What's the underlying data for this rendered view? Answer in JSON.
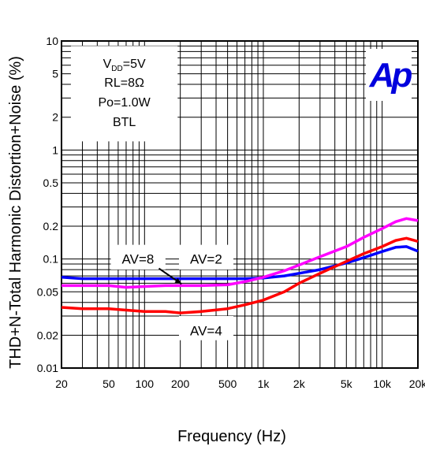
{
  "chart_data": {
    "type": "line",
    "xlabel": "Frequency (Hz)",
    "ylabel": "THD+N-Total Harmonic Distortion+Noise (%)",
    "x_scale": "log",
    "y_scale": "log",
    "xlim": [
      20,
      20000
    ],
    "ylim": [
      0.01,
      10
    ],
    "grid": true,
    "x_ticks": [
      {
        "value": 20,
        "label": "20"
      },
      {
        "value": 50,
        "label": "50"
      },
      {
        "value": 100,
        "label": "100"
      },
      {
        "value": 200,
        "label": "200"
      },
      {
        "value": 500,
        "label": "500"
      },
      {
        "value": 1000,
        "label": "1k"
      },
      {
        "value": 2000,
        "label": "2k"
      },
      {
        "value": 5000,
        "label": "5k"
      },
      {
        "value": 10000,
        "label": "10k"
      },
      {
        "value": 20000,
        "label": "20k"
      }
    ],
    "y_ticks": [
      {
        "value": 10,
        "label": "10"
      },
      {
        "value": 5,
        "label": "5"
      },
      {
        "value": 2,
        "label": "2"
      },
      {
        "value": 1,
        "label": "1"
      },
      {
        "value": 0.5,
        "label": "0.5"
      },
      {
        "value": 0.2,
        "label": "0.2"
      },
      {
        "value": 0.1,
        "label": "0.1"
      },
      {
        "value": 0.05,
        "label": "0.05"
      },
      {
        "value": 0.02,
        "label": "0.02"
      },
      {
        "value": 0.01,
        "label": "0.01"
      }
    ],
    "conditions": {
      "vdd_prefix": "V",
      "vdd_sub": "DD",
      "vdd_value": "=5V",
      "rl": "RL=8Ω",
      "po": "Po=1.0W",
      "mode": "BTL"
    },
    "logo": "Ap",
    "series": [
      {
        "name": "AV=2",
        "color": "#0000ff",
        "points": [
          [
            20,
            0.068
          ],
          [
            30,
            0.066
          ],
          [
            50,
            0.066
          ],
          [
            100,
            0.066
          ],
          [
            200,
            0.066
          ],
          [
            300,
            0.066
          ],
          [
            500,
            0.066
          ],
          [
            700,
            0.066
          ],
          [
            1000,
            0.067
          ],
          [
            1500,
            0.07
          ],
          [
            2000,
            0.074
          ],
          [
            3000,
            0.08
          ],
          [
            5000,
            0.092
          ],
          [
            7000,
            0.103
          ],
          [
            10000,
            0.117
          ],
          [
            13000,
            0.128
          ],
          [
            16000,
            0.13
          ],
          [
            20000,
            0.118
          ]
        ]
      },
      {
        "name": "AV=8",
        "color": "#ff00ff",
        "points": [
          [
            20,
            0.057
          ],
          [
            30,
            0.057
          ],
          [
            50,
            0.057
          ],
          [
            70,
            0.055
          ],
          [
            100,
            0.056
          ],
          [
            150,
            0.057
          ],
          [
            200,
            0.057
          ],
          [
            300,
            0.057
          ],
          [
            500,
            0.058
          ],
          [
            700,
            0.062
          ],
          [
            1000,
            0.068
          ],
          [
            1500,
            0.078
          ],
          [
            2000,
            0.088
          ],
          [
            3000,
            0.105
          ],
          [
            5000,
            0.13
          ],
          [
            7000,
            0.158
          ],
          [
            10000,
            0.19
          ],
          [
            13000,
            0.22
          ],
          [
            16000,
            0.235
          ],
          [
            20000,
            0.225
          ]
        ]
      },
      {
        "name": "AV=4",
        "color": "#ff0000",
        "points": [
          [
            20,
            0.036
          ],
          [
            30,
            0.035
          ],
          [
            50,
            0.035
          ],
          [
            70,
            0.034
          ],
          [
            100,
            0.033
          ],
          [
            150,
            0.033
          ],
          [
            200,
            0.032
          ],
          [
            300,
            0.033
          ],
          [
            500,
            0.035
          ],
          [
            700,
            0.038
          ],
          [
            1000,
            0.042
          ],
          [
            1500,
            0.05
          ],
          [
            2000,
            0.06
          ],
          [
            3000,
            0.074
          ],
          [
            5000,
            0.095
          ],
          [
            7000,
            0.112
          ],
          [
            10000,
            0.13
          ],
          [
            13000,
            0.148
          ],
          [
            16000,
            0.155
          ],
          [
            20000,
            0.145
          ]
        ]
      }
    ],
    "annotations": [
      {
        "text": "AV=8",
        "target": "AV=8"
      },
      {
        "text": "AV=2",
        "target": "AV=2"
      },
      {
        "text": "AV=4",
        "target": "AV=4"
      }
    ]
  }
}
